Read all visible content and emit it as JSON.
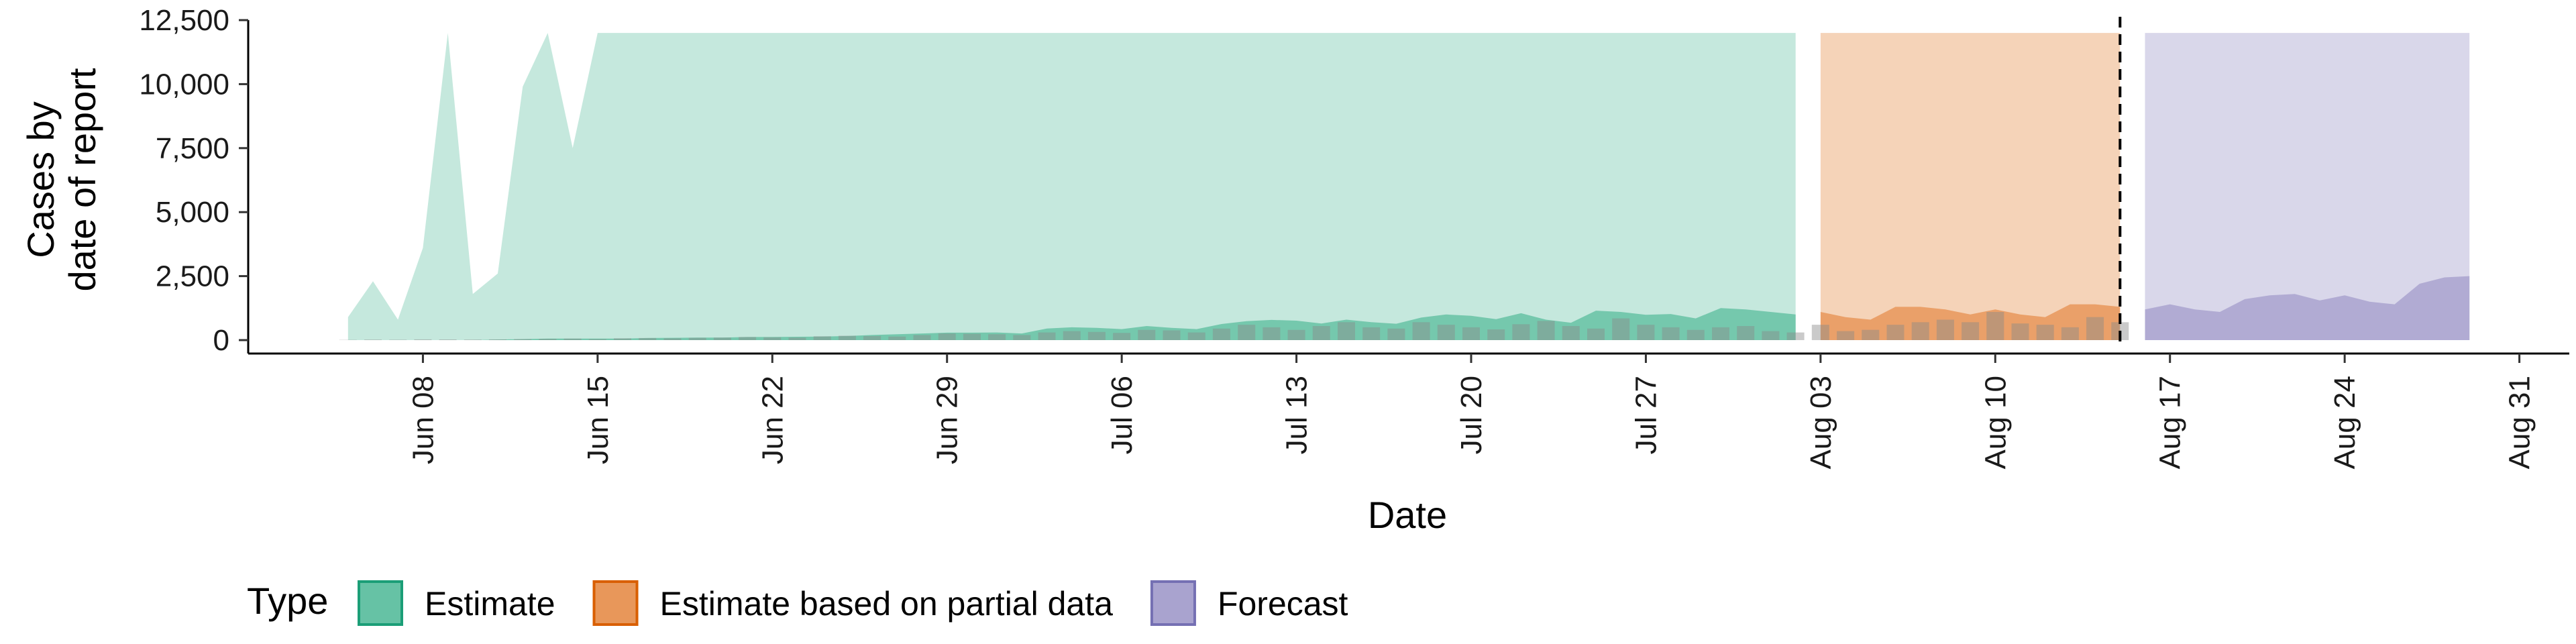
{
  "chart_data": {
    "type": "area",
    "title": "",
    "xlabel": "Date",
    "ylabel": "Cases by date of report",
    "ylabel_lines": [
      "Cases by",
      "date of report"
    ],
    "ylim": [
      0,
      12500
    ],
    "y_ticks": [
      0,
      2500,
      5000,
      7500,
      10000,
      12500
    ],
    "y_tick_labels": [
      "0",
      "2,500",
      "5,000",
      "7,500",
      "10,000",
      "12,500"
    ],
    "x_range": [
      "2020-06-01",
      "2020-09-02"
    ],
    "x_ticks": [
      "2020-06-08",
      "2020-06-15",
      "2020-06-22",
      "2020-06-29",
      "2020-07-06",
      "2020-07-13",
      "2020-07-20",
      "2020-07-27",
      "2020-08-03",
      "2020-08-10",
      "2020-08-17",
      "2020-08-24",
      "2020-08-31"
    ],
    "x_tick_labels": [
      "Jun 08",
      "Jun 15",
      "Jun 22",
      "Jun 29",
      "Jul 06",
      "Jul 13",
      "Jul 20",
      "Jul 27",
      "Aug 03",
      "Aug 10",
      "Aug 17",
      "Aug 24",
      "Aug 31"
    ],
    "vline": "2020-08-15",
    "grid": false,
    "legend": {
      "title": "Type",
      "position": "bottom",
      "entries": [
        {
          "label": "Estimate",
          "fill": "#66c2a5",
          "stroke": "#1b9e77"
        },
        {
          "label": "Estimate based on partial data",
          "fill": "#e8975a",
          "stroke": "#d95f02"
        },
        {
          "label": "Forecast",
          "fill": "#a9a3cf",
          "stroke": "#7570b3"
        }
      ]
    },
    "colors": {
      "estimate_outer": "#c5e8dd",
      "estimate_inner": "#66c2a5",
      "partial_outer": "#f5d3b8",
      "partial_inner": "#e8975a",
      "forecast_outer": "#d9d7ea",
      "forecast_inner": "#a9a3cf",
      "observed_bar": "#8a8a8a"
    },
    "series": [
      {
        "type": "Estimate",
        "x": [
          "2020-06-05",
          "2020-06-06",
          "2020-06-07",
          "2020-06-08",
          "2020-06-09",
          "2020-06-10",
          "2020-06-11",
          "2020-06-12",
          "2020-06-13",
          "2020-06-14",
          "2020-06-15",
          "2020-06-16",
          "2020-06-17",
          "2020-06-18",
          "2020-06-19",
          "2020-06-20",
          "2020-06-21",
          "2020-06-22",
          "2020-06-23",
          "2020-06-24",
          "2020-06-25",
          "2020-06-26",
          "2020-06-27",
          "2020-06-28",
          "2020-06-29",
          "2020-06-30",
          "2020-07-01",
          "2020-07-02",
          "2020-07-03",
          "2020-07-04",
          "2020-07-05",
          "2020-07-06",
          "2020-07-07",
          "2020-07-08",
          "2020-07-09",
          "2020-07-10",
          "2020-07-11",
          "2020-07-12",
          "2020-07-13",
          "2020-07-14",
          "2020-07-15",
          "2020-07-16",
          "2020-07-17",
          "2020-07-18",
          "2020-07-19",
          "2020-07-20",
          "2020-07-21",
          "2020-07-22",
          "2020-07-23",
          "2020-07-24",
          "2020-07-25",
          "2020-07-26",
          "2020-07-27",
          "2020-07-28",
          "2020-07-29",
          "2020-07-30",
          "2020-07-31",
          "2020-08-01",
          "2020-08-02"
        ],
        "upper": [
          900,
          2300,
          800,
          3600,
          12000,
          1800,
          2600,
          9900,
          12000,
          7500,
          12000,
          12000,
          12000,
          12000,
          12000,
          12000,
          12000,
          12000,
          12000,
          12000,
          12000,
          12000,
          12000,
          12000,
          12000,
          12000,
          12000,
          12000,
          12000,
          12000,
          12000,
          12000,
          12000,
          12000,
          12000,
          12000,
          12000,
          12000,
          12000,
          12000,
          12000,
          12000,
          12000,
          12000,
          12000,
          12000,
          12000,
          12000,
          12000,
          12000,
          12000,
          12000,
          12000,
          12000,
          12000,
          12000,
          12000,
          12000,
          12000
        ],
        "inner": [
          0,
          0,
          0,
          0,
          0,
          0,
          20,
          40,
          60,
          60,
          60,
          60,
          80,
          90,
          100,
          100,
          120,
          120,
          130,
          140,
          160,
          200,
          230,
          260,
          290,
          290,
          300,
          260,
          450,
          500,
          480,
          430,
          550,
          480,
          430,
          630,
          740,
          790,
          760,
          650,
          800,
          700,
          640,
          880,
          1000,
          950,
          820,
          1050,
          800,
          680,
          1150,
          1100,
          990,
          1020,
          850,
          1250,
          1200,
          1100,
          1000
        ],
        "lower": [
          0,
          0,
          0,
          0,
          0,
          0,
          0,
          0,
          0,
          0,
          0,
          0,
          0,
          0,
          0,
          0,
          0,
          0,
          0,
          0,
          0,
          0,
          0,
          0,
          0,
          0,
          0,
          0,
          0,
          0,
          0,
          0,
          0,
          0,
          0,
          0,
          0,
          0,
          0,
          0,
          0,
          0,
          0,
          0,
          0,
          0,
          0,
          0,
          0,
          0,
          0,
          0,
          0,
          0,
          0,
          0,
          0,
          0,
          0
        ]
      },
      {
        "type": "Estimate based on partial data",
        "x": [
          "2020-08-03",
          "2020-08-04",
          "2020-08-05",
          "2020-08-06",
          "2020-08-07",
          "2020-08-08",
          "2020-08-09",
          "2020-08-10",
          "2020-08-11",
          "2020-08-12",
          "2020-08-13",
          "2020-08-14",
          "2020-08-15"
        ],
        "upper": [
          12000,
          12000,
          12000,
          12000,
          12000,
          12000,
          12000,
          12000,
          12000,
          12000,
          12000,
          12000,
          12000
        ],
        "inner": [
          1100,
          900,
          800,
          1300,
          1300,
          1200,
          1000,
          1200,
          1000,
          900,
          1400,
          1400,
          1300
        ],
        "lower": [
          0,
          0,
          0,
          0,
          0,
          0,
          0,
          0,
          0,
          0,
          0,
          0,
          0
        ]
      },
      {
        "type": "Forecast",
        "x": [
          "2020-08-16",
          "2020-08-17",
          "2020-08-18",
          "2020-08-19",
          "2020-08-20",
          "2020-08-21",
          "2020-08-22",
          "2020-08-23",
          "2020-08-24",
          "2020-08-25",
          "2020-08-26",
          "2020-08-27",
          "2020-08-28",
          "2020-08-29"
        ],
        "upper": [
          12000,
          12000,
          12000,
          12000,
          12000,
          12000,
          12000,
          12000,
          12000,
          12000,
          12000,
          12000,
          12000,
          12000
        ],
        "inner": [
          1200,
          1400,
          1200,
          1100,
          1600,
          1750,
          1800,
          1550,
          1750,
          1500,
          1400,
          2200,
          2450,
          2500
        ],
        "lower": [
          0,
          0,
          0,
          0,
          0,
          0,
          0,
          0,
          0,
          0,
          0,
          0,
          0,
          0
        ]
      }
    ],
    "observed": {
      "type": "bar",
      "x": [
        "2020-06-05",
        "2020-06-06",
        "2020-06-07",
        "2020-06-08",
        "2020-06-09",
        "2020-06-10",
        "2020-06-11",
        "2020-06-12",
        "2020-06-13",
        "2020-06-14",
        "2020-06-15",
        "2020-06-16",
        "2020-06-17",
        "2020-06-18",
        "2020-06-19",
        "2020-06-20",
        "2020-06-21",
        "2020-06-22",
        "2020-06-23",
        "2020-06-24",
        "2020-06-25",
        "2020-06-26",
        "2020-06-27",
        "2020-06-28",
        "2020-06-29",
        "2020-06-30",
        "2020-07-01",
        "2020-07-02",
        "2020-07-03",
        "2020-07-04",
        "2020-07-05",
        "2020-07-06",
        "2020-07-07",
        "2020-07-08",
        "2020-07-09",
        "2020-07-10",
        "2020-07-11",
        "2020-07-12",
        "2020-07-13",
        "2020-07-14",
        "2020-07-15",
        "2020-07-16",
        "2020-07-17",
        "2020-07-18",
        "2020-07-19",
        "2020-07-20",
        "2020-07-21",
        "2020-07-22",
        "2020-07-23",
        "2020-07-24",
        "2020-07-25",
        "2020-07-26",
        "2020-07-27",
        "2020-07-28",
        "2020-07-29",
        "2020-07-30",
        "2020-07-31",
        "2020-08-01",
        "2020-08-02",
        "2020-08-03",
        "2020-08-04",
        "2020-08-05",
        "2020-08-06",
        "2020-08-07",
        "2020-08-08",
        "2020-08-09",
        "2020-08-10",
        "2020-08-11",
        "2020-08-12",
        "2020-08-13",
        "2020-08-14",
        "2020-08-15"
      ],
      "values": [
        10,
        20,
        15,
        30,
        25,
        20,
        30,
        40,
        50,
        60,
        40,
        70,
        80,
        70,
        90,
        100,
        120,
        110,
        100,
        150,
        170,
        160,
        140,
        200,
        260,
        250,
        230,
        200,
        300,
        350,
        320,
        280,
        400,
        380,
        300,
        450,
        600,
        500,
        400,
        550,
        700,
        500,
        450,
        700,
        600,
        500,
        420,
        620,
        750,
        550,
        450,
        850,
        600,
        500,
        400,
        500,
        550,
        350,
        300,
        600,
        350,
        400,
        600,
        700,
        800,
        700,
        1100,
        650,
        600,
        500,
        900,
        700
      ]
    }
  }
}
